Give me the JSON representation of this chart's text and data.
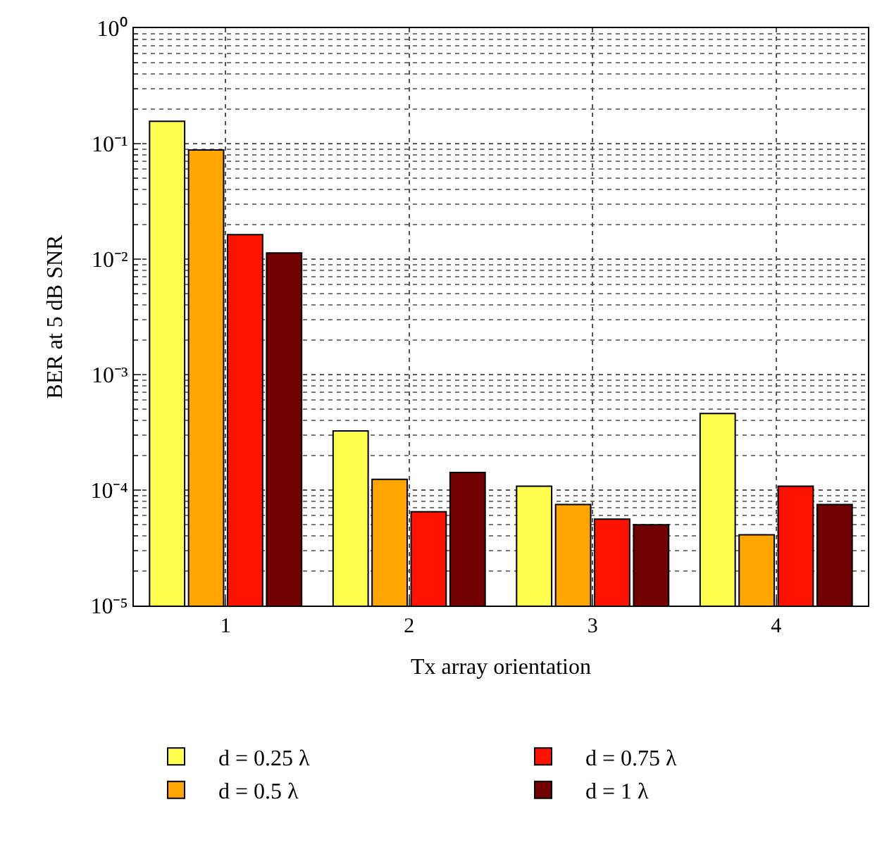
{
  "chart_data": {
    "type": "bar",
    "xlabel": "Tx array orientation",
    "ylabel": "BER at 5 dB SNR",
    "log": true,
    "grid": true,
    "legend": "bottom",
    "categories": [
      "1",
      "2",
      "3",
      "4"
    ],
    "ylim": [
      1e-05,
      1
    ],
    "yticks": [
      {
        "value": 1e-05,
        "label": "10⁻⁵"
      },
      {
        "value": 0.0001,
        "label": "10⁻⁴"
      },
      {
        "value": 0.001,
        "label": "10⁻³"
      },
      {
        "value": 0.01,
        "label": "10⁻²"
      },
      {
        "value": 0.1,
        "label": "10⁻¹"
      },
      {
        "value": 1,
        "label": "10⁰"
      }
    ],
    "series": [
      {
        "name": "d = 0.25 λ",
        "color": "#ffff4d",
        "values": [
          0.156,
          0.000325,
          0.000108,
          0.00046
        ]
      },
      {
        "name": "d = 0.5 λ",
        "color": "#ffa500",
        "values": [
          0.088,
          0.000124,
          7.5e-05,
          4.1e-05
        ]
      },
      {
        "name": "d = 0.75 λ",
        "color": "#ff1200",
        "values": [
          0.0163,
          6.5e-05,
          5.6e-05,
          0.000108
        ]
      },
      {
        "name": "d = 1 λ",
        "color": "#730000",
        "values": [
          0.0113,
          0.000142,
          5e-05,
          7.5e-05
        ]
      }
    ]
  }
}
